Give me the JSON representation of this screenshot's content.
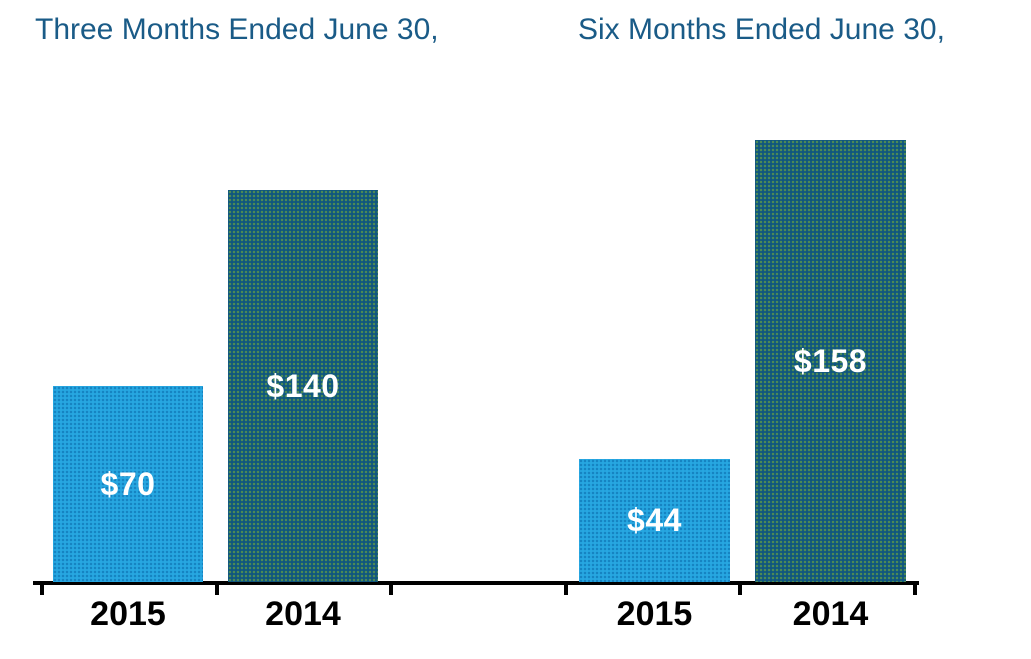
{
  "figure": {
    "background": "#FFFFFF"
  },
  "colors": {
    "title_text": "#1A5B87",
    "axis": "#000000",
    "category_label_text": "#000000",
    "value_label_text": "#FFFFFF",
    "light_bar": "#27A7E1",
    "light_bar_dot": "#1583C1",
    "dark_bar": "#0F567F",
    "dark_bar_dot": "#4E8B55"
  },
  "chart_data": [
    {
      "type": "bar",
      "title": "Three Months Ended June 30,",
      "categories": [
        "2015",
        "2014"
      ],
      "values": [
        70,
        140
      ],
      "value_labels": [
        "$70",
        "$140"
      ],
      "bar_color_roles": [
        "light_bar",
        "dark_bar"
      ],
      "value_label_position": "inside-middle",
      "y_axis_visible": false,
      "gridlines": false,
      "legend": "none"
    },
    {
      "type": "bar",
      "title": "Six Months Ended June 30,",
      "categories": [
        "2015",
        "2014"
      ],
      "values": [
        44,
        158
      ],
      "value_labels": [
        "$44",
        "$158"
      ],
      "bar_color_roles": [
        "light_bar",
        "dark_bar"
      ],
      "value_label_position": "inside-middle",
      "y_axis_visible": false,
      "gridlines": false,
      "legend": "none"
    }
  ]
}
